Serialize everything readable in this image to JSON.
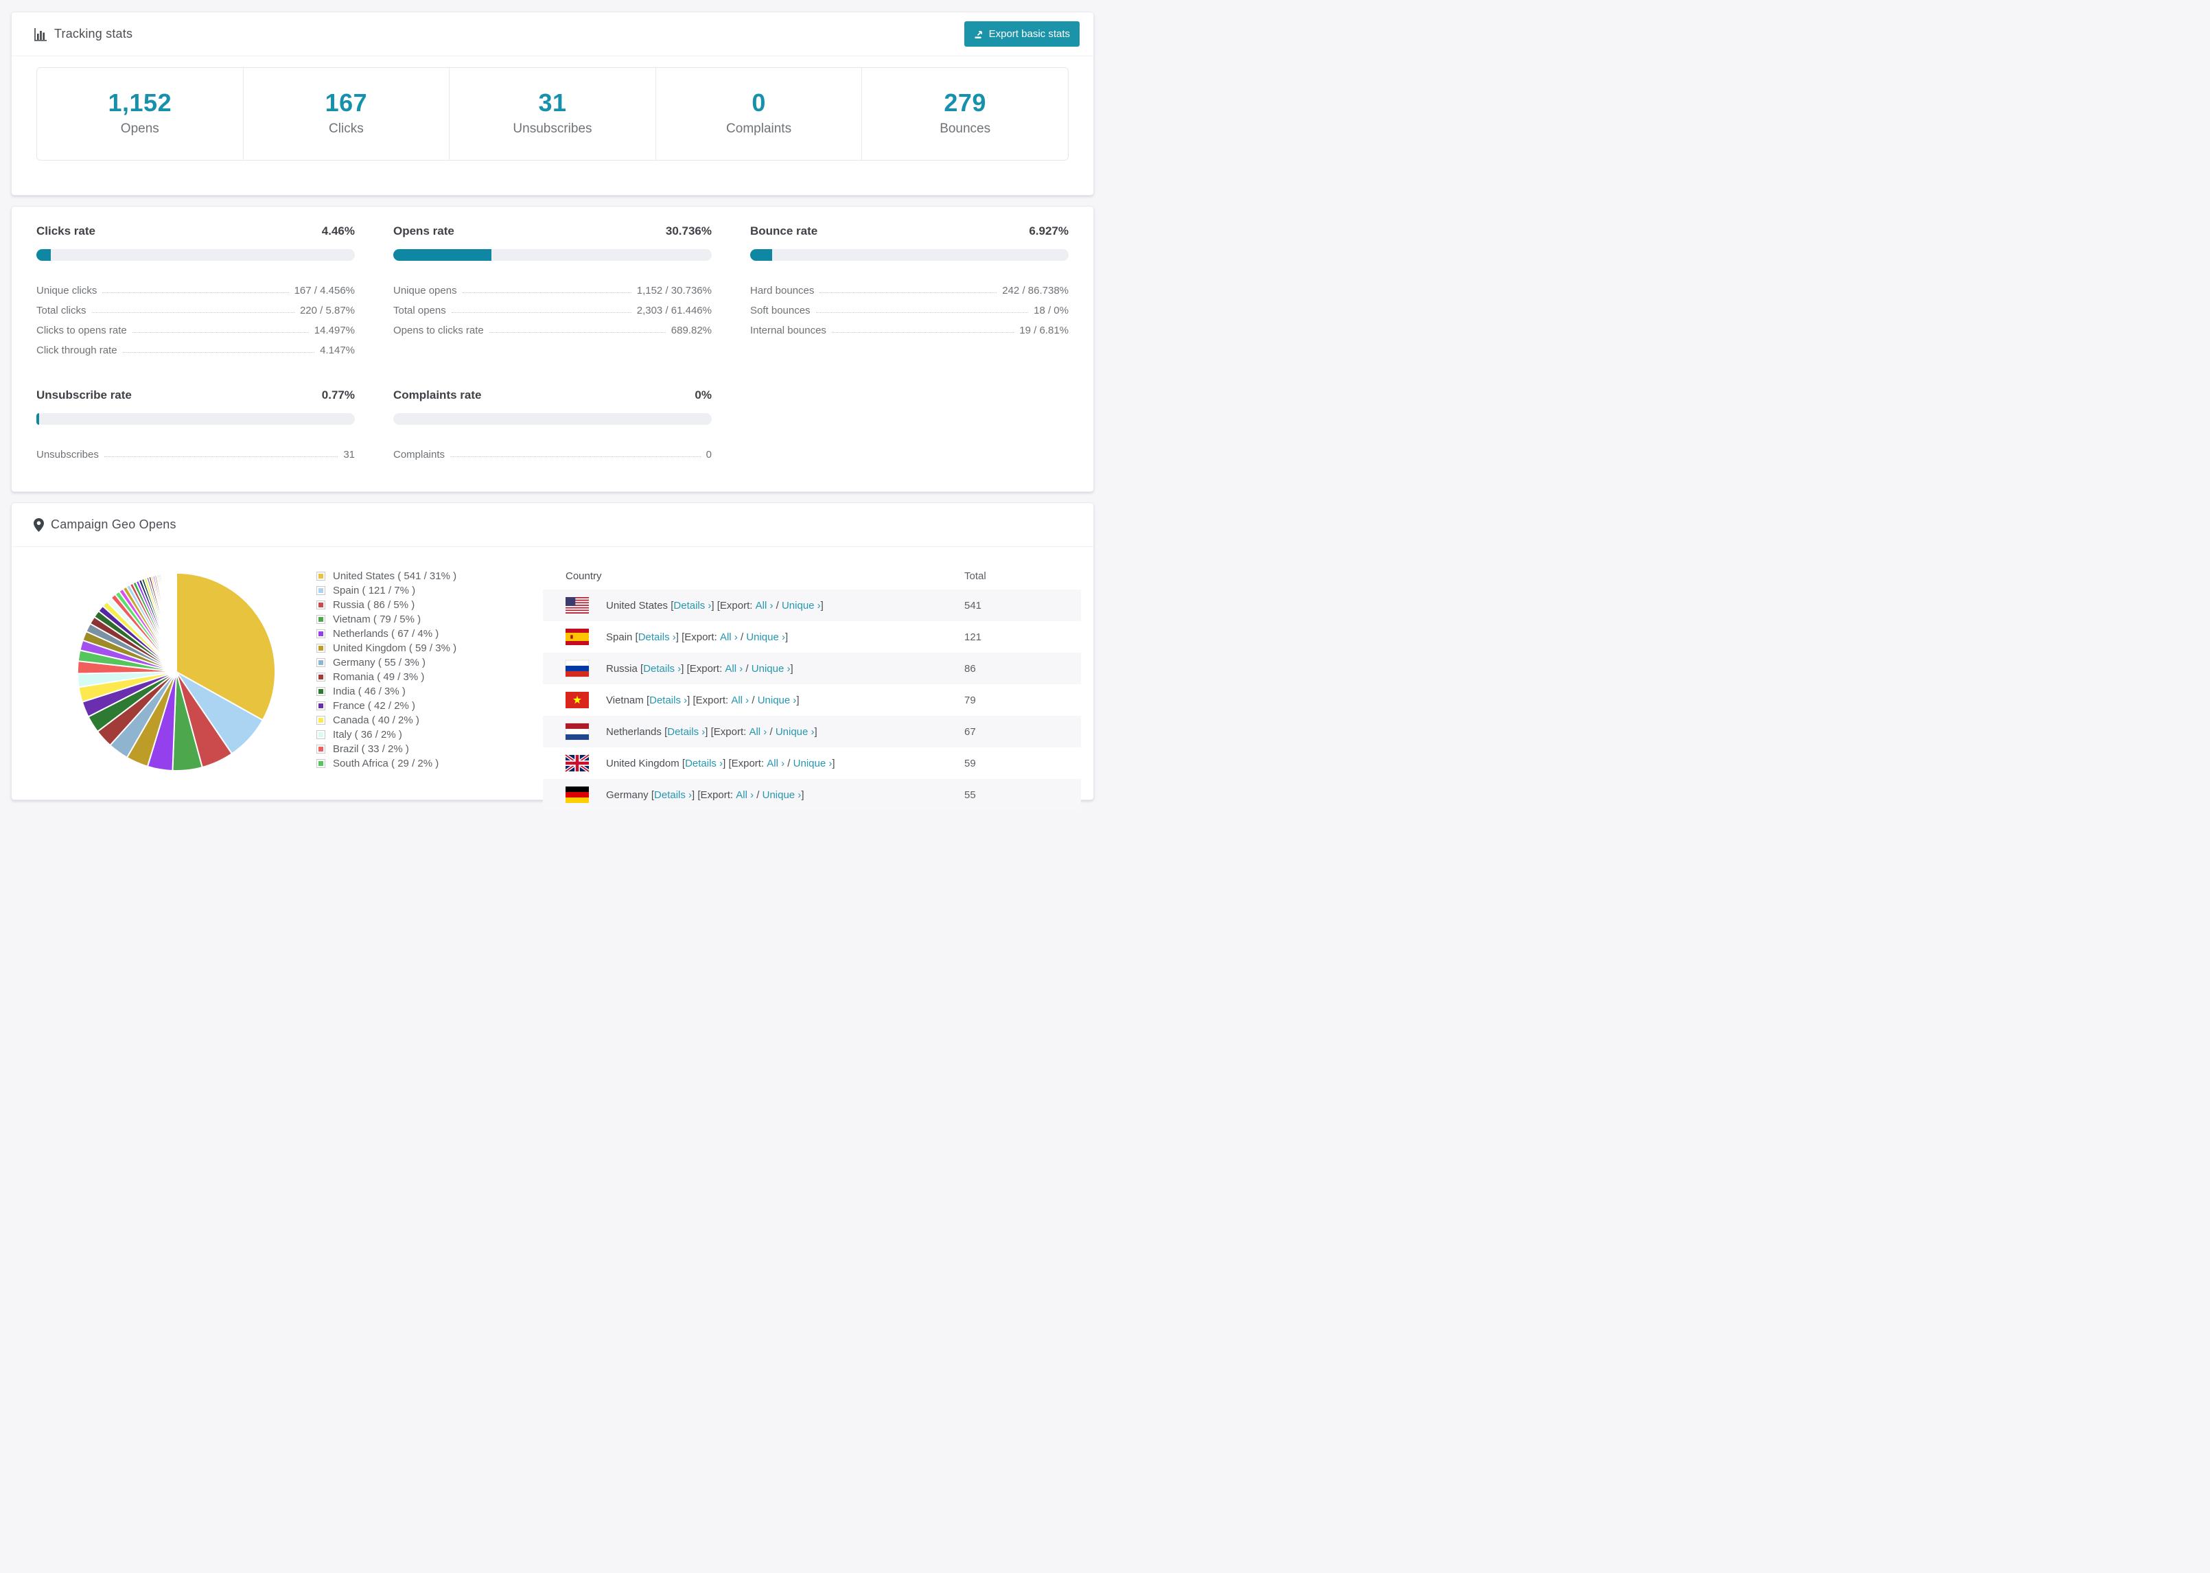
{
  "accent": {
    "teal": "#1790ab",
    "button_teal": "#1b93a9",
    "link_teal": "#2597b0"
  },
  "tracking": {
    "title": "Tracking stats",
    "export_button": "Export basic stats",
    "stats": [
      {
        "value": "1,152",
        "label": "Opens"
      },
      {
        "value": "167",
        "label": "Clicks"
      },
      {
        "value": "31",
        "label": "Unsubscribes"
      },
      {
        "value": "0",
        "label": "Complaints"
      },
      {
        "value": "279",
        "label": "Bounces"
      }
    ]
  },
  "rates": {
    "panels": [
      {
        "title": "Clicks rate",
        "value": "4.46%",
        "percent": 4.46,
        "rows": [
          {
            "label": "Unique clicks",
            "value": "167 / 4.456%"
          },
          {
            "label": "Total clicks",
            "value": "220 / 5.87%"
          },
          {
            "label": "Clicks to opens rate",
            "value": "14.497%"
          },
          {
            "label": "Click through rate",
            "value": "4.147%"
          }
        ]
      },
      {
        "title": "Opens rate",
        "value": "30.736%",
        "percent": 30.736,
        "rows": [
          {
            "label": "Unique opens",
            "value": "1,152 / 30.736%"
          },
          {
            "label": "Total opens",
            "value": "2,303 / 61.446%"
          },
          {
            "label": "Opens to clicks rate",
            "value": "689.82%"
          }
        ]
      },
      {
        "title": "Bounce rate",
        "value": "6.927%",
        "percent": 6.927,
        "rows": [
          {
            "label": "Hard bounces",
            "value": "242 / 86.738%"
          },
          {
            "label": "Soft bounces",
            "value": "18 / 0%"
          },
          {
            "label": "Internal bounces",
            "value": "19 / 6.81%"
          }
        ]
      },
      {
        "title": "Unsubscribe rate",
        "value": "0.77%",
        "percent": 0.77,
        "rows": [
          {
            "label": "Unsubscribes",
            "value": "31"
          }
        ]
      },
      {
        "title": "Complaints rate",
        "value": "0%",
        "percent": 0,
        "rows": [
          {
            "label": "Complaints",
            "value": "0"
          }
        ]
      }
    ]
  },
  "geo": {
    "title": "Campaign Geo Opens",
    "legend": [
      {
        "label": "United States ( 541 / 31% )",
        "color": "#E8C33D"
      },
      {
        "label": "Spain ( 121 / 7% )",
        "color": "#ABD3F2"
      },
      {
        "label": "Russia ( 86 / 5% )",
        "color": "#CB4B4C"
      },
      {
        "label": "Vietnam ( 79 / 5% )",
        "color": "#4DA74D"
      },
      {
        "label": "Netherlands ( 67 / 4% )",
        "color": "#9440ED"
      },
      {
        "label": "United Kingdom ( 59 / 3% )",
        "color": "#BD9C27"
      },
      {
        "label": "Germany ( 55 / 3% )",
        "color": "#8FB4CF"
      },
      {
        "label": "Romania ( 49 / 3% )",
        "color": "#A23C39"
      },
      {
        "label": "India ( 46 / 3% )",
        "color": "#2D7A33"
      },
      {
        "label": "France ( 42 / 2% )",
        "color": "#6A2FAE"
      },
      {
        "label": "Canada ( 40 / 2% )",
        "color": "#FDE84E"
      },
      {
        "label": "Italy ( 36 / 2% )",
        "color": "#D5FBF4"
      },
      {
        "label": "Brazil ( 33 / 2% )",
        "color": "#F15F5C"
      },
      {
        "label": "South Africa ( 29 / 2% )",
        "color": "#57C55D"
      }
    ],
    "chart_data": {
      "type": "pie",
      "title": "Campaign Geo Opens",
      "legend_position": "right",
      "categories": [
        "United States",
        "Spain",
        "Russia",
        "Vietnam",
        "Netherlands",
        "United Kingdom",
        "Germany",
        "Romania",
        "India",
        "France",
        "Canada",
        "Italy",
        "Brazil",
        "South Africa"
      ],
      "values": [
        541,
        121,
        86,
        79,
        67,
        59,
        55,
        49,
        46,
        42,
        40,
        36,
        33,
        29
      ],
      "percent_labels": [
        "31%",
        "7%",
        "5%",
        "5%",
        "4%",
        "3%",
        "3%",
        "3%",
        "3%",
        "2%",
        "2%",
        "2%",
        "2%",
        "2%"
      ],
      "colors": [
        "#E8C33D",
        "#ABD3F2",
        "#CB4B4C",
        "#4DA74D",
        "#9440ED",
        "#BD9C27",
        "#8FB4CF",
        "#A23C39",
        "#2D7A33",
        "#6A2FAE",
        "#FDE84E",
        "#D5FBF4",
        "#F15F5C",
        "#57C55D"
      ],
      "others_estimated_values": [
        27,
        25,
        23,
        21,
        19,
        17,
        16,
        15,
        14,
        13,
        12,
        11,
        10,
        9,
        9,
        8,
        8,
        7,
        7,
        6,
        6,
        5,
        5,
        5,
        4,
        4,
        4,
        3,
        3,
        3,
        3,
        2.5,
        2.5,
        2,
        2,
        2,
        2,
        1.5,
        1.5,
        1.5,
        1.2,
        1,
        1,
        1,
        0.9,
        0.8,
        0.8,
        0.7,
        0.6,
        0.6,
        0.5,
        0.5,
        0.4,
        0.4,
        0.3,
        0.3,
        0.2,
        0.2
      ],
      "others_palette": [
        "#A450EE",
        "#9C8B26",
        "#7A90A3",
        "#8C3434",
        "#2F6B2D",
        "#5527A0",
        "#F5EE4B",
        "#E8FCF9",
        "#F2595F",
        "#57E06B",
        "#DD4FEF",
        "#C9A227",
        "#A8D4F0",
        "#CC4E4E",
        "#3FAA4C",
        "#9637F0",
        "#232F6E",
        "#184F2A",
        "#F4EE4A",
        "#6A7F92",
        "#7C2A2A",
        "#E1C23E"
      ]
    },
    "table": {
      "headers": [
        "Country",
        "Total"
      ],
      "link_details": "Details ›",
      "link_export_prefix": "Export:",
      "link_all": "All ›",
      "link_unique": "Unique ›",
      "rows": [
        {
          "country": "United States",
          "flag": "us",
          "total": "541"
        },
        {
          "country": "Spain",
          "flag": "es",
          "total": "121"
        },
        {
          "country": "Russia",
          "flag": "ru",
          "total": "86"
        },
        {
          "country": "Vietnam",
          "flag": "vn",
          "total": "79"
        },
        {
          "country": "Netherlands",
          "flag": "nl",
          "total": "67"
        },
        {
          "country": "United Kingdom",
          "flag": "gb",
          "total": "59"
        },
        {
          "country": "Germany",
          "flag": "de",
          "total": "55"
        }
      ]
    }
  }
}
